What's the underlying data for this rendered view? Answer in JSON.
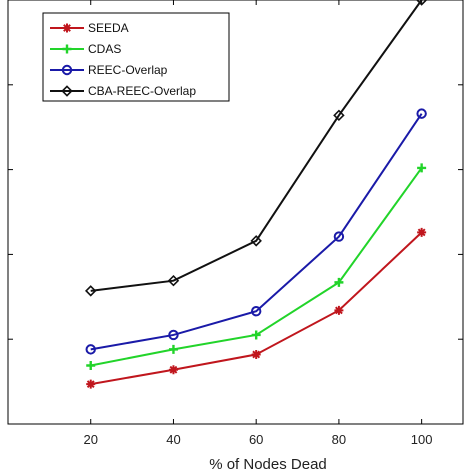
{
  "chart_data": {
    "type": "line",
    "x": [
      20,
      40,
      60,
      80,
      100
    ],
    "xlabel": "% of Nodes Dead",
    "ylabel": "",
    "xlim": [
      0,
      110
    ],
    "ylim": [
      0,
      5
    ],
    "xticks": [
      "20",
      "40",
      "60",
      "80",
      "100"
    ],
    "yticks": [
      0,
      1,
      2,
      3,
      4
    ],
    "grid": false,
    "legend_position": "top-left",
    "series": [
      {
        "name": "SEEDA",
        "values": [
          0.47,
          0.64,
          0.82,
          1.34,
          2.26
        ],
        "color": "#c0161d",
        "marker": "star"
      },
      {
        "name": "CDAS",
        "values": [
          0.69,
          0.88,
          1.05,
          1.67,
          3.02
        ],
        "color": "#22d42a",
        "marker": "plus"
      },
      {
        "name": "REEC-Overlap",
        "values": [
          0.88,
          1.05,
          1.33,
          2.21,
          3.66
        ],
        "color": "#1a1aa8",
        "marker": "circle"
      },
      {
        "name": "CBA-REEC-Overlap",
        "values": [
          1.57,
          1.69,
          2.16,
          3.64,
          5.0
        ],
        "color": "#111111",
        "marker": "diamond"
      }
    ]
  }
}
